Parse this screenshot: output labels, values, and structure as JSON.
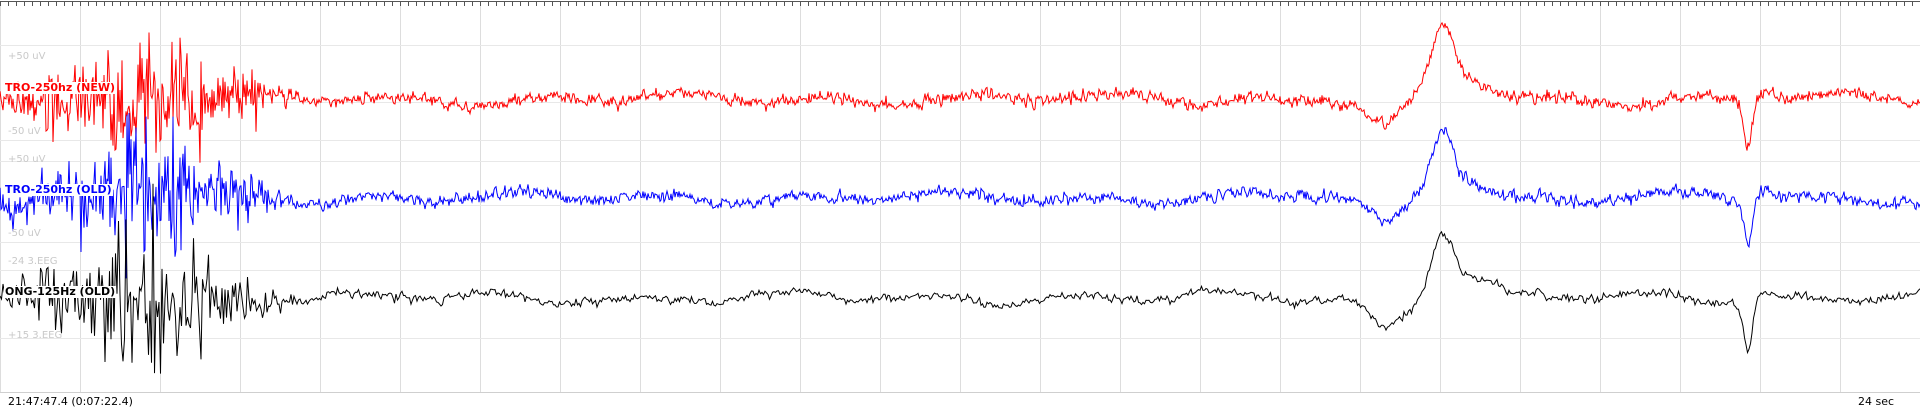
{
  "channels": [
    {
      "label": "TRO-250hz (NEW)",
      "color": "#ff0000",
      "scale_top": "+50 uV",
      "scale_bottom": "-50 uV"
    },
    {
      "label": "TRO-250hz (OLD)",
      "color": "#0000ff",
      "scale_top": "+50 uV",
      "scale_bottom": "-50 uV"
    },
    {
      "label": "ONG-125Hz (OLD)",
      "color": "#000000",
      "scale_top": "-24 3.EEG",
      "scale_bottom": "+15 3.EEG"
    }
  ],
  "footer": {
    "timestamp": "21:47:47.4 (0:07:22.4)",
    "duration": "24 sec"
  },
  "colors": {
    "grid": "#dddddd",
    "background": "#ffffff"
  }
}
